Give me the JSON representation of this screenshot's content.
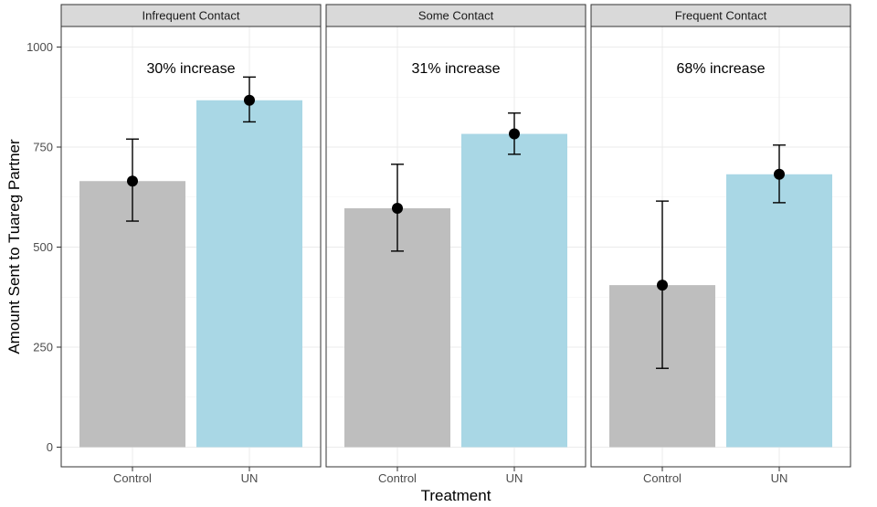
{
  "chart_data": {
    "type": "bar",
    "xlabel": "Treatment",
    "ylabel": "Amount Sent to Tuareg Partner",
    "ylim": [
      0,
      1000
    ],
    "yticks": [
      0,
      250,
      500,
      750,
      1000
    ],
    "categories": [
      "Control",
      "UN"
    ],
    "grid": true,
    "colors": {
      "Control": "#bebebe",
      "UN": "#a9d7e5"
    },
    "panels": [
      {
        "title": "Infrequent Contact",
        "annotation": "30% increase",
        "values": [
          665,
          867
        ],
        "error_low": [
          565,
          813
        ],
        "error_high": [
          770,
          925
        ]
      },
      {
        "title": "Some Contact",
        "annotation": "31% increase",
        "values": [
          597,
          783
        ],
        "error_low": [
          490,
          732
        ],
        "error_high": [
          707,
          835
        ]
      },
      {
        "title": "Frequent Contact",
        "annotation": "68% increase",
        "values": [
          405,
          682
        ],
        "error_low": [
          197,
          611
        ],
        "error_high": [
          615,
          755
        ]
      }
    ]
  }
}
